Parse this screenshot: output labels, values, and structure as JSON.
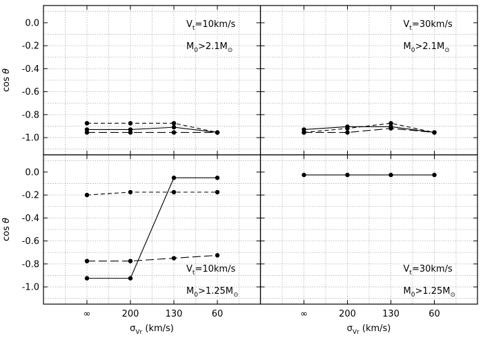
{
  "chart_data": {
    "type": "line",
    "layout": "2x2 panel grid",
    "ylabel": "cos θ",
    "xlabel": "σ_Vr (km/s)",
    "xlabel_main": "σ",
    "xlabel_sub": "Vr",
    "xlabel_unit": " (km/s)",
    "categories": [
      "∞",
      "200",
      "130",
      "60"
    ],
    "yticks": [
      0.0,
      -0.2,
      -0.4,
      -0.6,
      -0.8,
      -1.0
    ],
    "ytick_labels": [
      "0.0",
      "-0.2",
      "-0.4",
      "-0.6",
      "-0.8",
      "-1.0"
    ],
    "ylim": [
      -1.15,
      0.15
    ],
    "grid": true,
    "legend": "none",
    "panels": [
      {
        "position": "top-left",
        "annotations": [
          {
            "main": "V",
            "sub": "t",
            "rest": "=10km/s"
          },
          {
            "main": "M",
            "sub": "0",
            "rest": ">2.1M",
            "sun_sub": true
          }
        ],
        "series": [
          {
            "name": "solid",
            "style": "solid",
            "values": [
              -0.93,
              -0.93,
              -0.91,
              -0.955
            ]
          },
          {
            "name": "short-dash",
            "style": "short-dash",
            "values": [
              -0.875,
              -0.875,
              -0.875,
              -0.955
            ]
          },
          {
            "name": "long-dash",
            "style": "long-dash",
            "values": [
              -0.955,
              -0.955,
              -0.955,
              -0.955
            ]
          }
        ]
      },
      {
        "position": "top-right",
        "annotations": [
          {
            "main": "V",
            "sub": "t",
            "rest": "=30km/s"
          },
          {
            "main": "M",
            "sub": "0",
            "rest": ">2.1M",
            "sun_sub": true
          }
        ],
        "series": [
          {
            "name": "solid",
            "style": "solid",
            "values": [
              -0.93,
              -0.905,
              -0.905,
              -0.955
            ]
          },
          {
            "name": "short-dash",
            "style": "short-dash",
            "values": [
              -0.955,
              -0.92,
              -0.875,
              -0.955
            ]
          },
          {
            "name": "long-dash",
            "style": "long-dash",
            "values": [
              -0.955,
              -0.955,
              -0.92,
              -0.955
            ]
          }
        ]
      },
      {
        "position": "bottom-left",
        "annotations": [
          {
            "main": "V",
            "sub": "t",
            "rest": "=10km/s"
          },
          {
            "main": "M",
            "sub": "0",
            "rest": ">1.25M",
            "sun_sub": true
          }
        ],
        "series": [
          {
            "name": "solid",
            "style": "solid",
            "values": [
              -0.925,
              -0.925,
              -0.05,
              -0.05
            ]
          },
          {
            "name": "short-dash",
            "style": "short-dash",
            "values": [
              -0.2,
              -0.175,
              -0.175,
              -0.175
            ]
          },
          {
            "name": "long-dash",
            "style": "long-dash",
            "values": [
              -0.775,
              -0.775,
              -0.75,
              -0.725
            ]
          }
        ]
      },
      {
        "position": "bottom-right",
        "annotations": [
          {
            "main": "V",
            "sub": "t",
            "rest": "=30km/s"
          },
          {
            "main": "M",
            "sub": "0",
            "rest": ">1.25M",
            "sun_sub": true
          }
        ],
        "series": [
          {
            "name": "solid",
            "style": "solid",
            "values": [
              -0.025,
              -0.025,
              -0.025,
              -0.025
            ]
          }
        ]
      }
    ]
  }
}
